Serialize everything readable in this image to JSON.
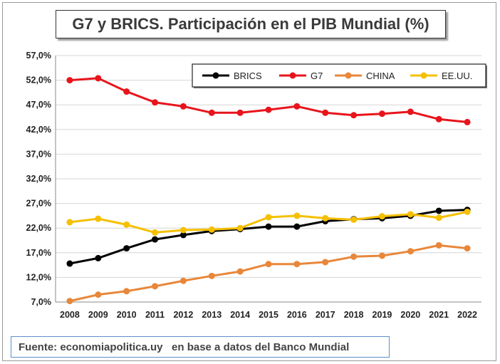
{
  "title": "G7 y BRICS. Participación en el PIB Mundial (%)",
  "source": "Fuente: economiapolitica.uy   en base a datos del Banco Mundial",
  "chart_data": {
    "type": "line",
    "title": "G7 y BRICS. Participación en el PIB Mundial (%)",
    "xlabel": "",
    "ylabel": "",
    "x": [
      "2008",
      "2009",
      "2010",
      "2011",
      "2012",
      "2013",
      "2014",
      "2015",
      "2016",
      "2017",
      "2018",
      "2019",
      "2020",
      "2021",
      "2022"
    ],
    "ylim": [
      7,
      57
    ],
    "yticks": [
      "7,0%",
      "12,0%",
      "17,0%",
      "22,0%",
      "27,0%",
      "32,0%",
      "37,0%",
      "42,0%",
      "47,0%",
      "52,0%",
      "57,0%"
    ],
    "grid": "horizontal",
    "legend_position": "top-right",
    "series": [
      {
        "name": "BRICS",
        "color": "#000000",
        "values": [
          14.8,
          15.9,
          17.9,
          19.7,
          20.6,
          21.4,
          21.8,
          22.3,
          22.3,
          23.4,
          23.8,
          24.0,
          24.5,
          25.5,
          25.7
        ]
      },
      {
        "name": "G7",
        "color": "#e8141b",
        "values": [
          52.0,
          52.4,
          49.7,
          47.5,
          46.7,
          45.4,
          45.4,
          46.0,
          46.7,
          45.4,
          44.9,
          45.2,
          45.6,
          44.1,
          43.5
        ]
      },
      {
        "name": "CHINA",
        "color": "#e8873a",
        "values": [
          7.2,
          8.5,
          9.2,
          10.2,
          11.3,
          12.3,
          13.2,
          14.7,
          14.7,
          15.1,
          16.2,
          16.4,
          17.3,
          18.5,
          17.9
        ]
      },
      {
        "name": "EE.UU.",
        "color": "#f5c000",
        "values": [
          23.2,
          23.9,
          22.7,
          21.1,
          21.6,
          21.7,
          22.0,
          24.2,
          24.5,
          24.0,
          23.7,
          24.4,
          24.8,
          24.1,
          25.3
        ]
      }
    ]
  }
}
